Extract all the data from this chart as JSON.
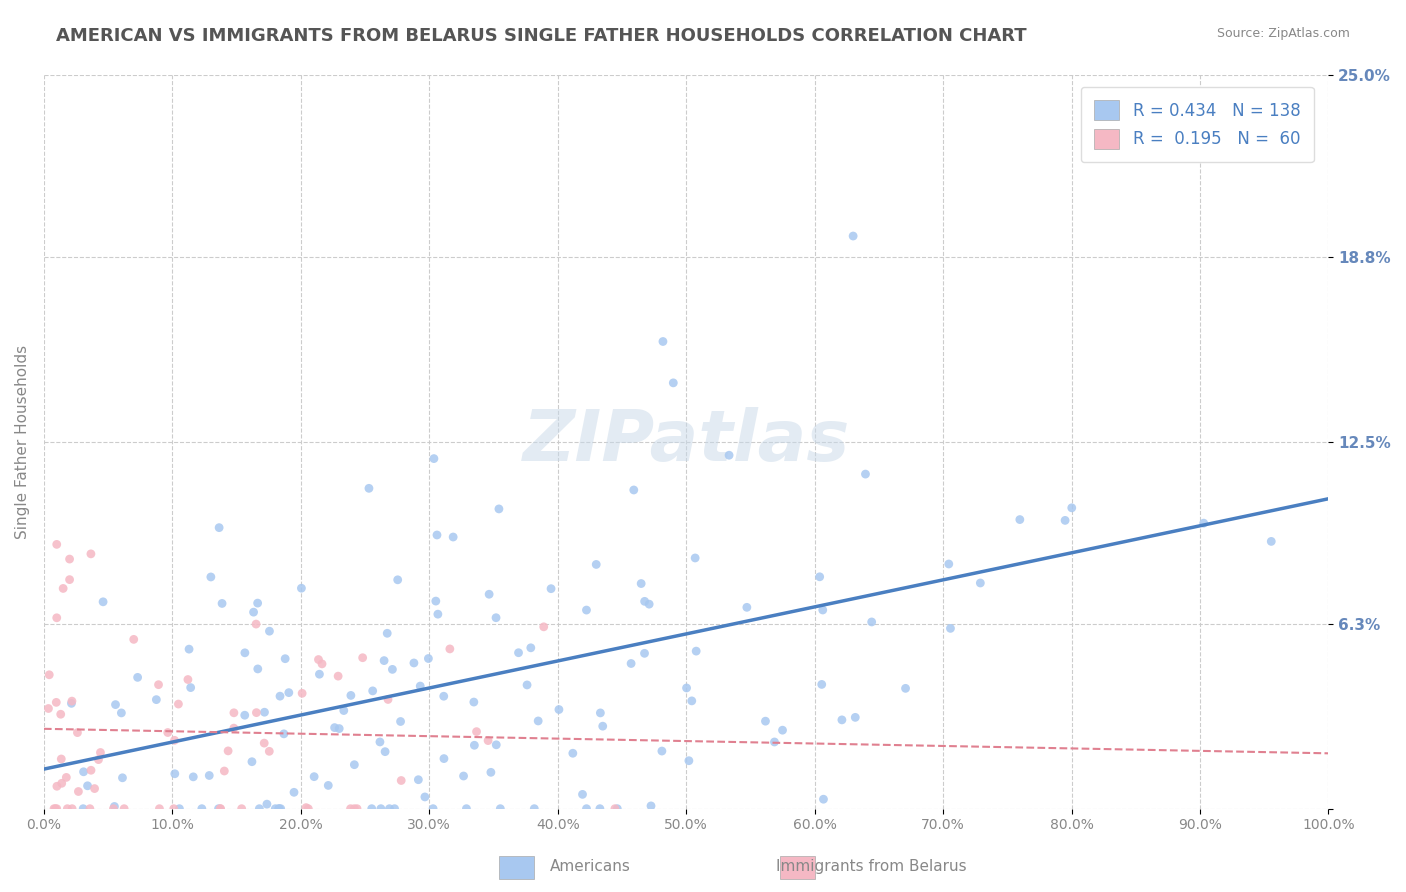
{
  "title": "AMERICAN VS IMMIGRANTS FROM BELARUS SINGLE FATHER HOUSEHOLDS CORRELATION CHART",
  "source": "Source: ZipAtlas.com",
  "xlabel": "",
  "ylabel": "Single Father Households",
  "xlim": [
    0,
    1.0
  ],
  "ylim": [
    0,
    0.25
  ],
  "yticks": [
    0.0,
    0.063,
    0.125,
    0.188,
    0.25
  ],
  "ytick_labels": [
    "",
    "6.3%",
    "12.5%",
    "18.8%",
    "25.0%"
  ],
  "xtick_labels": [
    "0.0%",
    "10.0%",
    "20.0%",
    "30.0%",
    "40.0%",
    "50.0%",
    "60.0%",
    "70.0%",
    "80.0%",
    "90.0%",
    "100.0%"
  ],
  "xticks": [
    0.0,
    0.1,
    0.2,
    0.3,
    0.4,
    0.5,
    0.6,
    0.7,
    0.8,
    0.9,
    1.0
  ],
  "american_color": "#a8c8f0",
  "belarus_color": "#f5b8c4",
  "american_line_color": "#4a7fc1",
  "belarus_line_color": "#e08090",
  "R_american": 0.434,
  "N_american": 138,
  "R_belarus": 0.195,
  "N_belarus": 60,
  "watermark": "ZIPatlas",
  "background_color": "#ffffff",
  "grid_color": "#cccccc",
  "title_color": "#555555",
  "axis_label_color": "#6688bb",
  "legend_R_color": "#4a7fc1",
  "seed_american": 42,
  "seed_belarus": 123
}
